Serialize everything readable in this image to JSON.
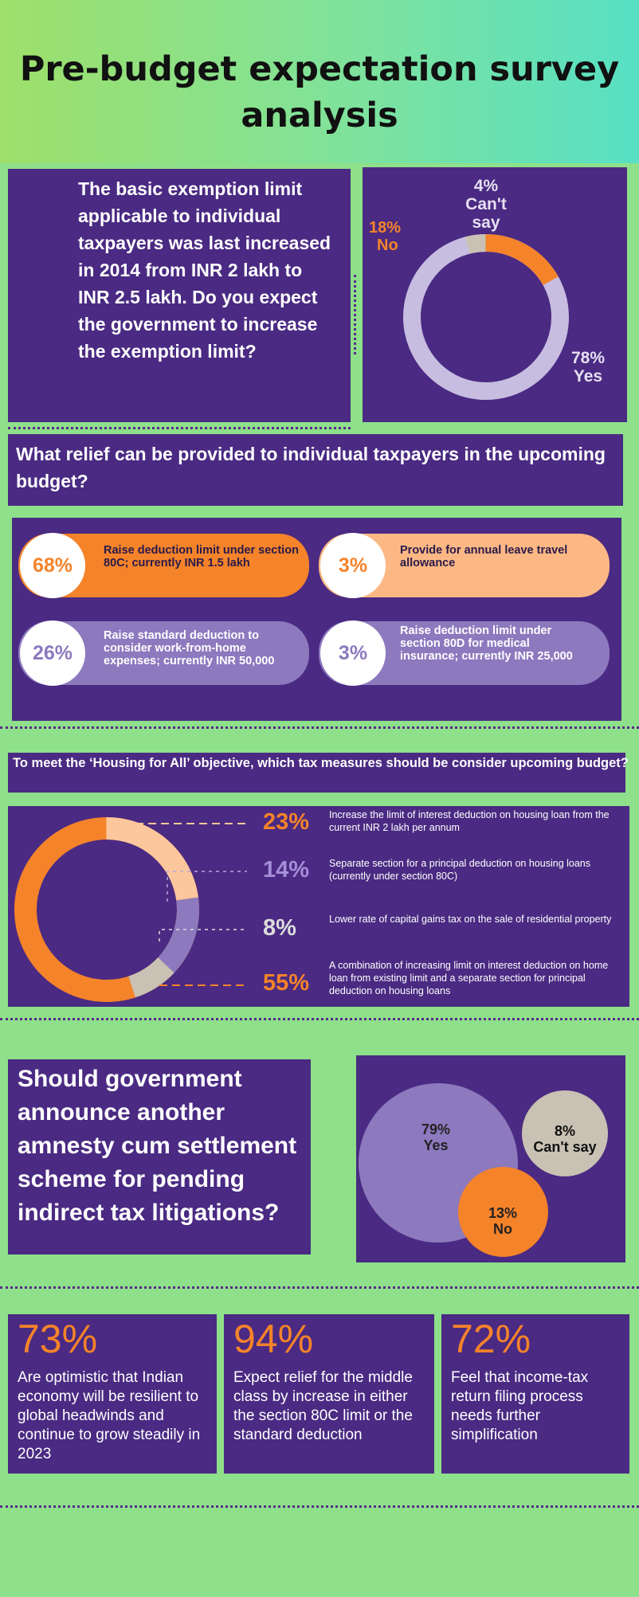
{
  "title": "Pre-budget expectation survey analysis",
  "colors": {
    "background": "#8ee08a",
    "panel": "#4a2a82",
    "orange": "#f5832a",
    "light_orange": "#fcb884",
    "lavender": "#c7bde0",
    "mid_purple": "#8c79be",
    "beige": "#c9c2b4"
  },
  "exemption": {
    "question": "The basic exemption limit applicable to individual taxpayers was last increased in 2014 from INR 2 lakh to INR 2.5 lakh. Do you expect the government to increase the exemption limit?",
    "slices": [
      {
        "pct": "4%",
        "label": "Can't say",
        "value": 4
      },
      {
        "pct": "18%",
        "label": "No",
        "value": 18
      },
      {
        "pct": "78%",
        "label": "Yes",
        "value": 78
      }
    ]
  },
  "relief": {
    "question": "What relief can be provided to individual taxpayers in the upcoming budget?",
    "items": [
      {
        "pct": "68%",
        "text": "Raise deduction limit under section 80C; currently INR 1.5 lakh"
      },
      {
        "pct": "3%",
        "text": "Provide for annual leave travel allowance"
      },
      {
        "pct": "26%",
        "text": "Raise standard deduction to consider work-from-home expenses; currently INR 50,000"
      },
      {
        "pct": "3%",
        "text": "Raise deduction limit under section 80D for medical insurance; currently INR 25,000"
      }
    ]
  },
  "housing": {
    "question": "To meet the ‘Housing for All’ objective, which tax measures should be consider upcoming budget?",
    "items": [
      {
        "pct": "23%",
        "value": 23,
        "text": "Increase the limit of interest deduction on housing loan from the current INR 2 lakh per annum"
      },
      {
        "pct": "14%",
        "value": 14,
        "text": "Separate section for a principal deduction on housing loans (currently under section 80C)"
      },
      {
        "pct": "8%",
        "value": 8,
        "text": "Lower rate of capital gains tax on the sale of residential property"
      },
      {
        "pct": "55%",
        "value": 55,
        "text": "A combination of increasing limit on interest deduction on home loan from existing limit and a separate section for principal deduction on housing loans"
      }
    ]
  },
  "amnesty": {
    "question": "Should government announce another amnesty cum settlement scheme for pending indirect tax litigations?",
    "bubbles": [
      {
        "pct": "79%",
        "label": "Yes",
        "value": 79
      },
      {
        "pct": "8%",
        "label": "Can't say",
        "value": 8
      },
      {
        "pct": "13%",
        "label": "No",
        "value": 13
      }
    ]
  },
  "stats": [
    {
      "pct": "73%",
      "text": "Are optimistic that Indian economy will be resilient to global headwinds and continue to grow steadily in 2023"
    },
    {
      "pct": "94%",
      "text": "Expect relief for the middle class by increase in either the section 80C limit or the standard deduction"
    },
    {
      "pct": "72%",
      "text": "Feel that income-tax return filing process needs further simplification"
    }
  ]
}
